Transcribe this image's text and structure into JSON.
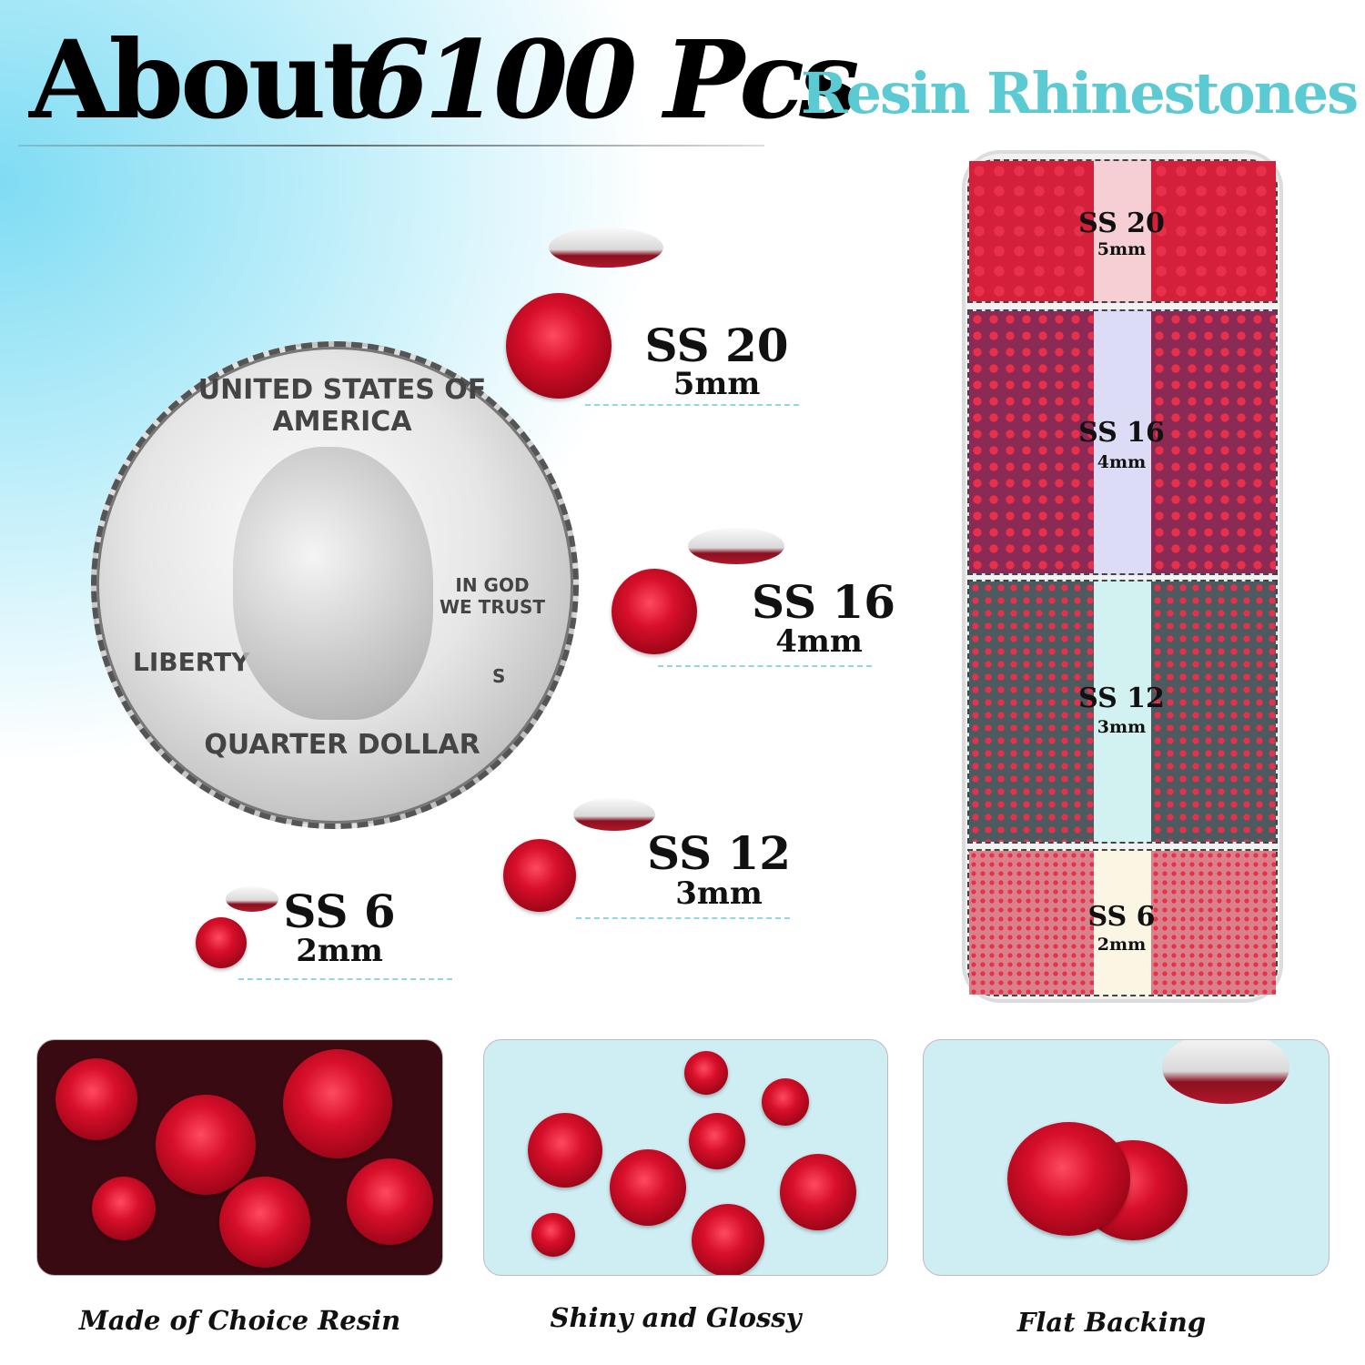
{
  "header": {
    "about": "About",
    "count": "6100 Pcs",
    "subtitle": "Resin Rhinestones"
  },
  "coin": {
    "top": "UNITED STATES OF AMERICA",
    "motto": "IN GOD WE TRUST",
    "liberty": "LIBERTY",
    "mint": "S",
    "bottom": "QUARTER DOLLAR"
  },
  "sizes": [
    {
      "name": "SS 20",
      "mm": "5mm"
    },
    {
      "name": "SS 16",
      "mm": "4mm"
    },
    {
      "name": "SS 12",
      "mm": "3mm"
    },
    {
      "name": "SS 6",
      "mm": "2mm"
    }
  ],
  "box_labels": [
    {
      "name": "SS 20",
      "mm": "5mm"
    },
    {
      "name": "SS 16",
      "mm": "4mm"
    },
    {
      "name": "SS 12",
      "mm": "3mm"
    },
    {
      "name": "SS 6",
      "mm": "2mm"
    }
  ],
  "features": [
    {
      "caption": "Made of Choice Resin"
    },
    {
      "caption": "Shiny and Glossy"
    },
    {
      "caption": "Flat Backing"
    }
  ],
  "colors": {
    "accent": "#5ccad3",
    "gem": "#d80f2a"
  }
}
